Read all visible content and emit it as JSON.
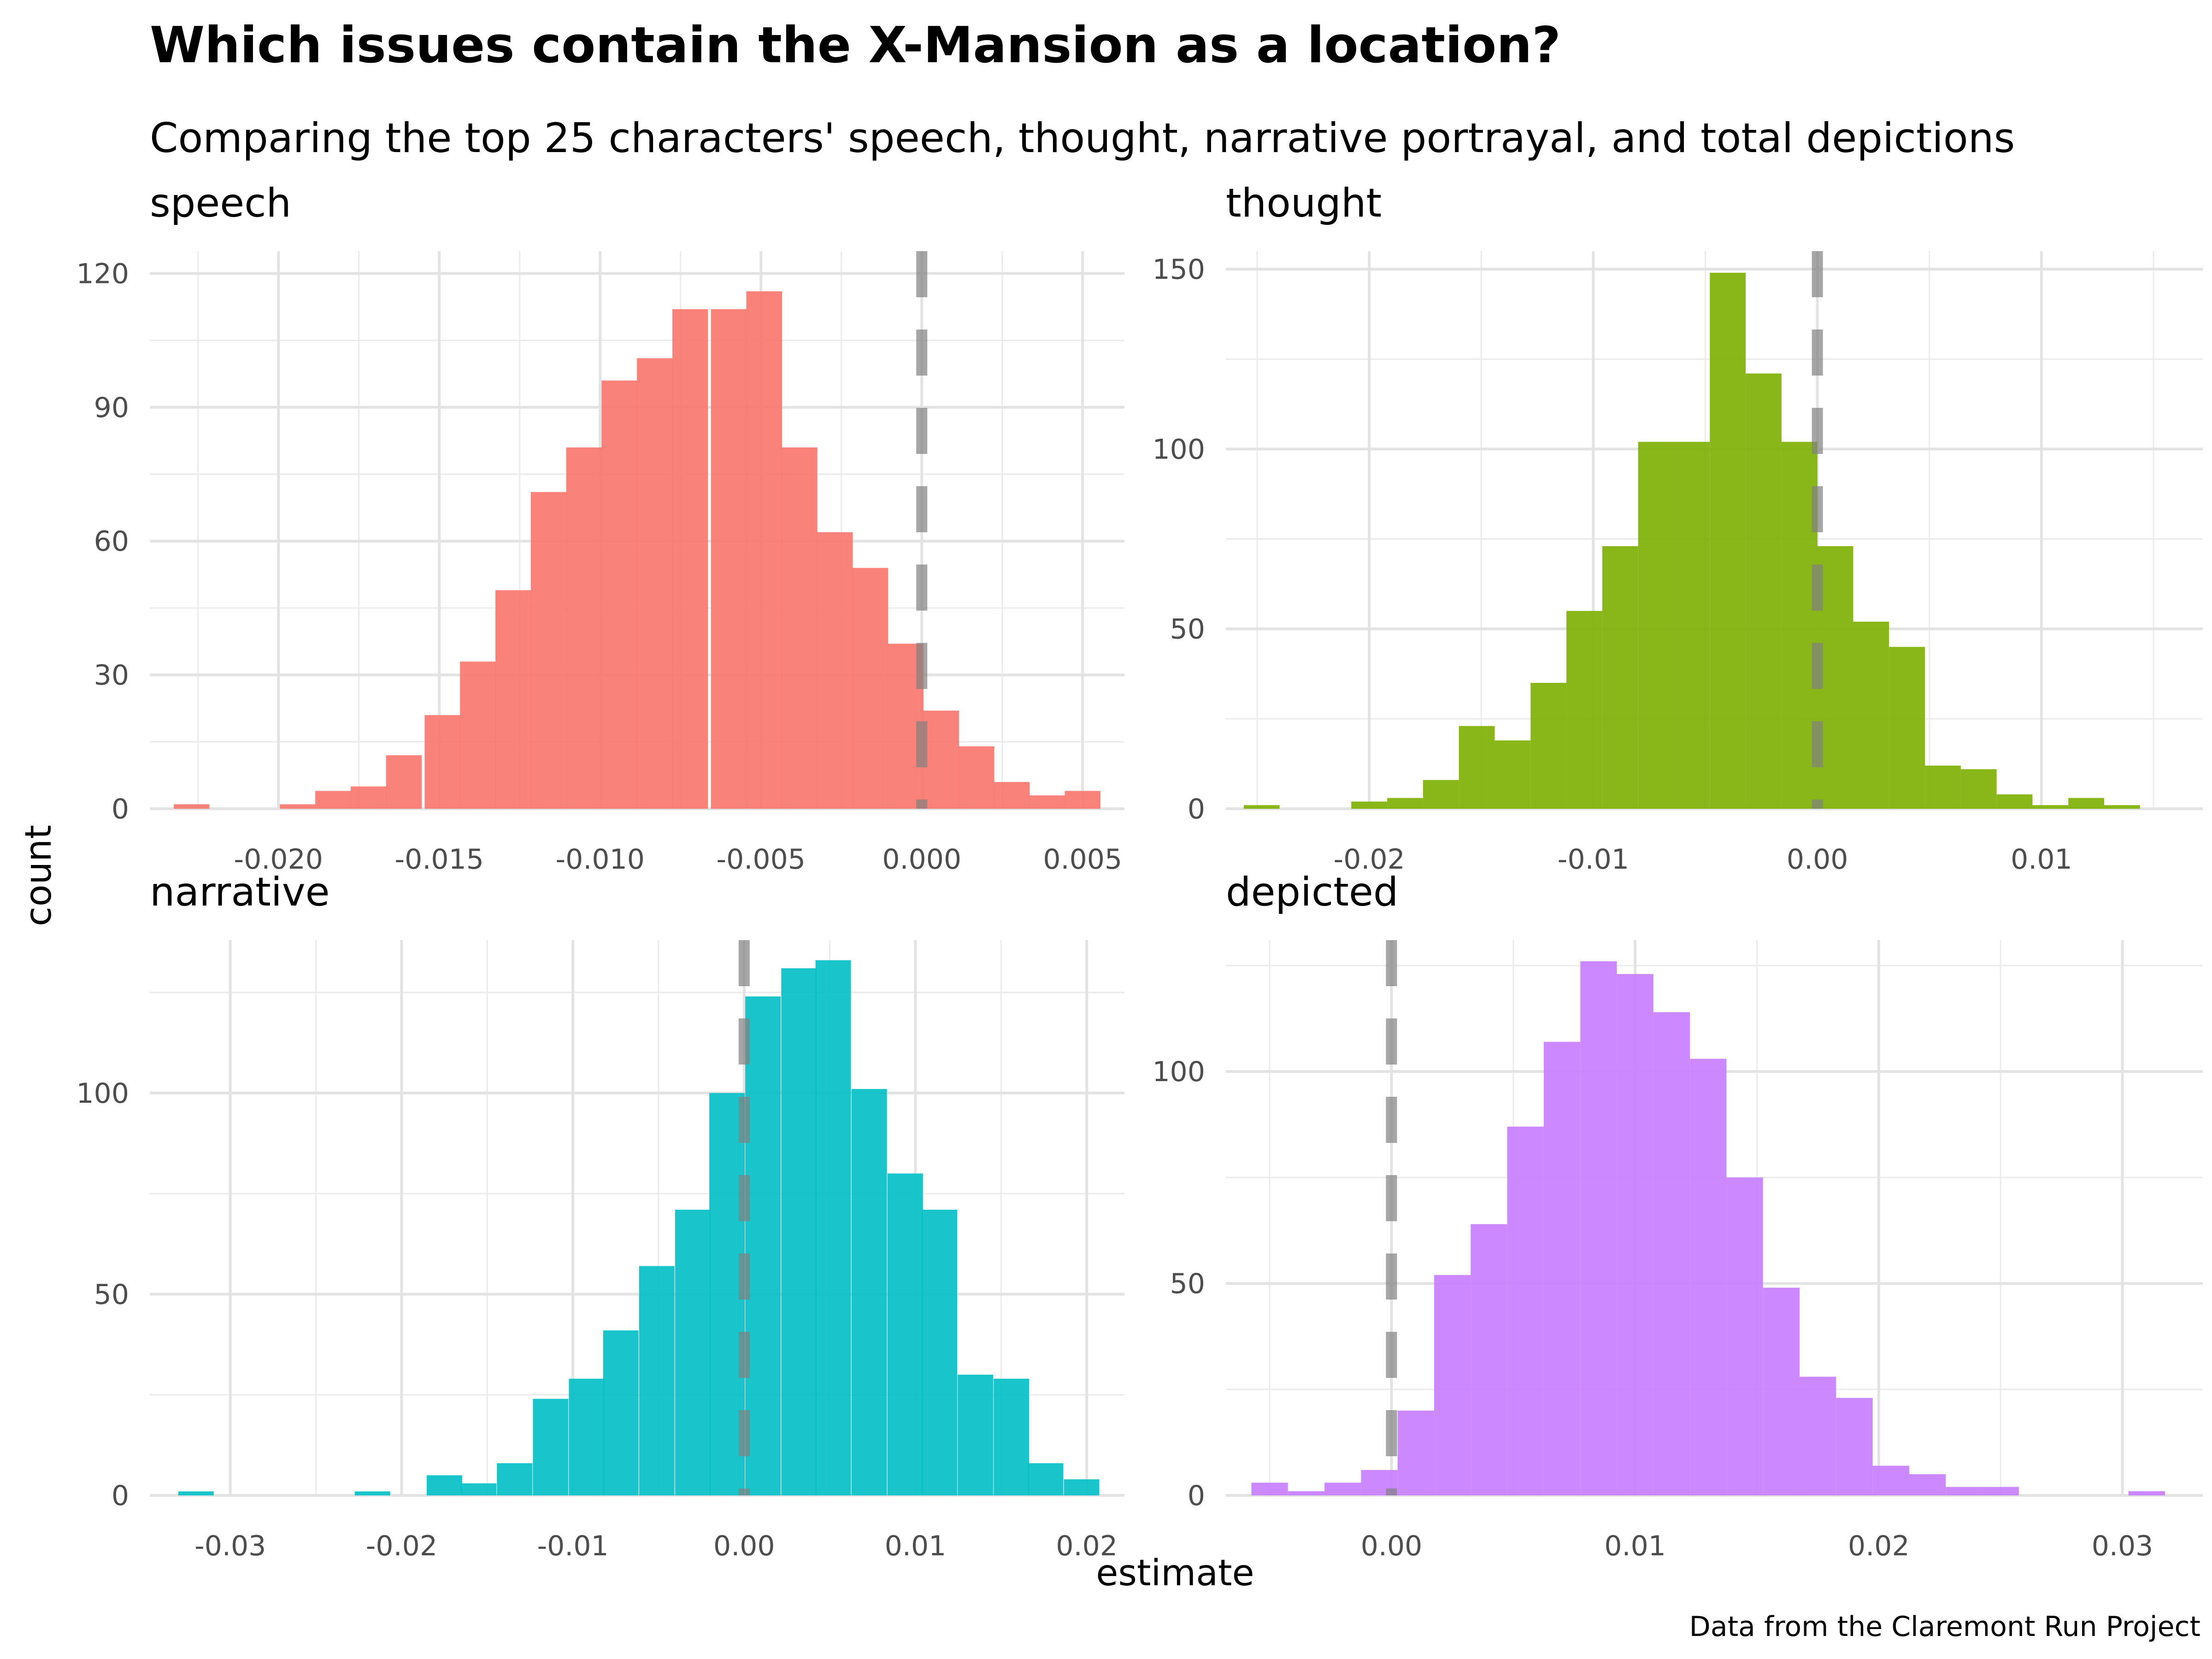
{
  "title": "Which issues contain the X-Mansion as a location?",
  "subtitle": "Comparing the top 25 characters' speech, thought, narrative portrayal, and total depictions",
  "x_label": "estimate",
  "y_label": "count",
  "caption": "Data from the Claremont Run Project",
  "chart_data": [
    {
      "type": "bar",
      "panel": "speech",
      "color": "#F8766D",
      "bin_width": 0.00111,
      "bins": [
        {
          "x": -0.0227,
          "count": 1
        },
        {
          "x": -0.0216,
          "count": 0
        },
        {
          "x": -0.0205,
          "count": 0
        },
        {
          "x": -0.0194,
          "count": 1
        },
        {
          "x": -0.0183,
          "count": 4
        },
        {
          "x": -0.0172,
          "count": 5
        },
        {
          "x": -0.0161,
          "count": 12
        },
        {
          "x": -0.0149,
          "count": 21
        },
        {
          "x": -0.0138,
          "count": 33
        },
        {
          "x": -0.0127,
          "count": 49
        },
        {
          "x": -0.0116,
          "count": 71
        },
        {
          "x": -0.0105,
          "count": 81
        },
        {
          "x": -0.0094,
          "count": 96
        },
        {
          "x": -0.0083,
          "count": 101
        },
        {
          "x": -0.0072,
          "count": 112
        },
        {
          "x": -0.006,
          "count": 112
        },
        {
          "x": -0.0049,
          "count": 116
        },
        {
          "x": -0.0038,
          "count": 81
        },
        {
          "x": -0.0027,
          "count": 62
        },
        {
          "x": -0.0016,
          "count": 54
        },
        {
          "x": -0.0005,
          "count": 37
        },
        {
          "x": 0.0006,
          "count": 22
        },
        {
          "x": 0.0017,
          "count": 14
        },
        {
          "x": 0.0028,
          "count": 6
        },
        {
          "x": 0.0039,
          "count": 3
        },
        {
          "x": 0.005,
          "count": 4
        }
      ],
      "xlim": [
        -0.024,
        0.0063
      ],
      "ylim": [
        0,
        125
      ],
      "x_ticks": [
        -0.02,
        -0.015,
        -0.01,
        -0.005,
        0.0,
        0.005
      ],
      "x_tick_labels": [
        "-0.020",
        "-0.015",
        "-0.010",
        "-0.005",
        "0.000",
        "0.005"
      ],
      "y_ticks": [
        0,
        30,
        60,
        90,
        120
      ],
      "zero_line": 0.0
    },
    {
      "type": "bar",
      "panel": "thought",
      "color": "#7CAE00",
      "bin_width": 0.0016,
      "bins": [
        {
          "x": -0.0248,
          "count": 1
        },
        {
          "x": -0.0232,
          "count": 0
        },
        {
          "x": -0.0216,
          "count": 0
        },
        {
          "x": -0.02,
          "count": 2
        },
        {
          "x": -0.0184,
          "count": 3
        },
        {
          "x": -0.0168,
          "count": 8
        },
        {
          "x": -0.0152,
          "count": 23
        },
        {
          "x": -0.0136,
          "count": 19
        },
        {
          "x": -0.012,
          "count": 35
        },
        {
          "x": -0.0104,
          "count": 55
        },
        {
          "x": -0.0088,
          "count": 73
        },
        {
          "x": -0.0072,
          "count": 102
        },
        {
          "x": -0.0056,
          "count": 102
        },
        {
          "x": -0.004,
          "count": 149
        },
        {
          "x": -0.0024,
          "count": 121
        },
        {
          "x": -0.0008,
          "count": 102
        },
        {
          "x": 0.0008,
          "count": 73
        },
        {
          "x": 0.0024,
          "count": 52
        },
        {
          "x": 0.004,
          "count": 45
        },
        {
          "x": 0.0056,
          "count": 12
        },
        {
          "x": 0.0072,
          "count": 11
        },
        {
          "x": 0.0088,
          "count": 4
        },
        {
          "x": 0.0104,
          "count": 1
        },
        {
          "x": 0.012,
          "count": 3
        },
        {
          "x": 0.0136,
          "count": 1
        }
      ],
      "xlim": [
        -0.0264,
        0.0172
      ],
      "ylim": [
        0,
        155
      ],
      "x_ticks": [
        -0.02,
        -0.01,
        0.0,
        0.01
      ],
      "x_tick_labels": [
        "-0.02",
        "-0.01",
        "0.00",
        "0.01"
      ],
      "y_ticks": [
        0,
        50,
        100,
        150
      ],
      "zero_line": 0.0
    },
    {
      "type": "bar",
      "panel": "narrative",
      "color": "#00BFC4",
      "bin_width": 0.00207,
      "bins": [
        {
          "x": -0.032,
          "count": 1
        },
        {
          "x": -0.0299,
          "count": 0
        },
        {
          "x": -0.0279,
          "count": 0
        },
        {
          "x": -0.0258,
          "count": 0
        },
        {
          "x": -0.0237,
          "count": 0
        },
        {
          "x": -0.0217,
          "count": 1
        },
        {
          "x": -0.0196,
          "count": 0
        },
        {
          "x": -0.0175,
          "count": 5
        },
        {
          "x": -0.0155,
          "count": 3
        },
        {
          "x": -0.0134,
          "count": 8
        },
        {
          "x": -0.0113,
          "count": 24
        },
        {
          "x": -0.0092,
          "count": 29
        },
        {
          "x": -0.0072,
          "count": 41
        },
        {
          "x": -0.0051,
          "count": 57
        },
        {
          "x": -0.003,
          "count": 71
        },
        {
          "x": -0.001,
          "count": 100
        },
        {
          "x": 0.0011,
          "count": 124
        },
        {
          "x": 0.0032,
          "count": 131
        },
        {
          "x": 0.0052,
          "count": 133
        },
        {
          "x": 0.0073,
          "count": 101
        },
        {
          "x": 0.0094,
          "count": 80
        },
        {
          "x": 0.0114,
          "count": 71
        },
        {
          "x": 0.0135,
          "count": 30
        },
        {
          "x": 0.0156,
          "count": 29
        },
        {
          "x": 0.0176,
          "count": 8
        },
        {
          "x": 0.0197,
          "count": 4
        }
      ],
      "xlim": [
        -0.0347,
        0.0222
      ],
      "ylim": [
        0,
        138
      ],
      "x_ticks": [
        -0.03,
        -0.02,
        -0.01,
        0.0,
        0.01,
        0.02
      ],
      "x_tick_labels": [
        "-0.03",
        "-0.02",
        "-0.01",
        "0.00",
        "0.01",
        "0.02"
      ],
      "y_ticks": [
        0,
        50,
        100
      ],
      "zero_line": 0.0
    },
    {
      "type": "bar",
      "panel": "depicted",
      "color": "#C77CFF",
      "bin_width": 0.0015,
      "bins": [
        {
          "x": -0.005,
          "count": 3
        },
        {
          "x": -0.0035,
          "count": 1
        },
        {
          "x": -0.002,
          "count": 3
        },
        {
          "x": -0.0005,
          "count": 6
        },
        {
          "x": 0.001,
          "count": 20
        },
        {
          "x": 0.0025,
          "count": 52
        },
        {
          "x": 0.004,
          "count": 64
        },
        {
          "x": 0.0055,
          "count": 87
        },
        {
          "x": 0.007,
          "count": 107
        },
        {
          "x": 0.0085,
          "count": 126
        },
        {
          "x": 0.01,
          "count": 123
        },
        {
          "x": 0.0115,
          "count": 114
        },
        {
          "x": 0.013,
          "count": 103
        },
        {
          "x": 0.0145,
          "count": 75
        },
        {
          "x": 0.016,
          "count": 49
        },
        {
          "x": 0.0175,
          "count": 28
        },
        {
          "x": 0.019,
          "count": 23
        },
        {
          "x": 0.0205,
          "count": 7
        },
        {
          "x": 0.022,
          "count": 5
        },
        {
          "x": 0.0235,
          "count": 2
        },
        {
          "x": 0.025,
          "count": 2
        },
        {
          "x": 0.0265,
          "count": 0
        },
        {
          "x": 0.028,
          "count": 0
        },
        {
          "x": 0.0295,
          "count": 0
        },
        {
          "x": 0.031,
          "count": 1
        }
      ],
      "xlim": [
        -0.0068,
        0.0333
      ],
      "ylim": [
        0,
        131
      ],
      "x_ticks": [
        0.0,
        0.01,
        0.02,
        0.03
      ],
      "x_tick_labels": [
        "0.00",
        "0.01",
        "0.02",
        "0.03"
      ],
      "y_ticks": [
        0,
        50,
        100
      ],
      "zero_line": 0.0
    }
  ]
}
